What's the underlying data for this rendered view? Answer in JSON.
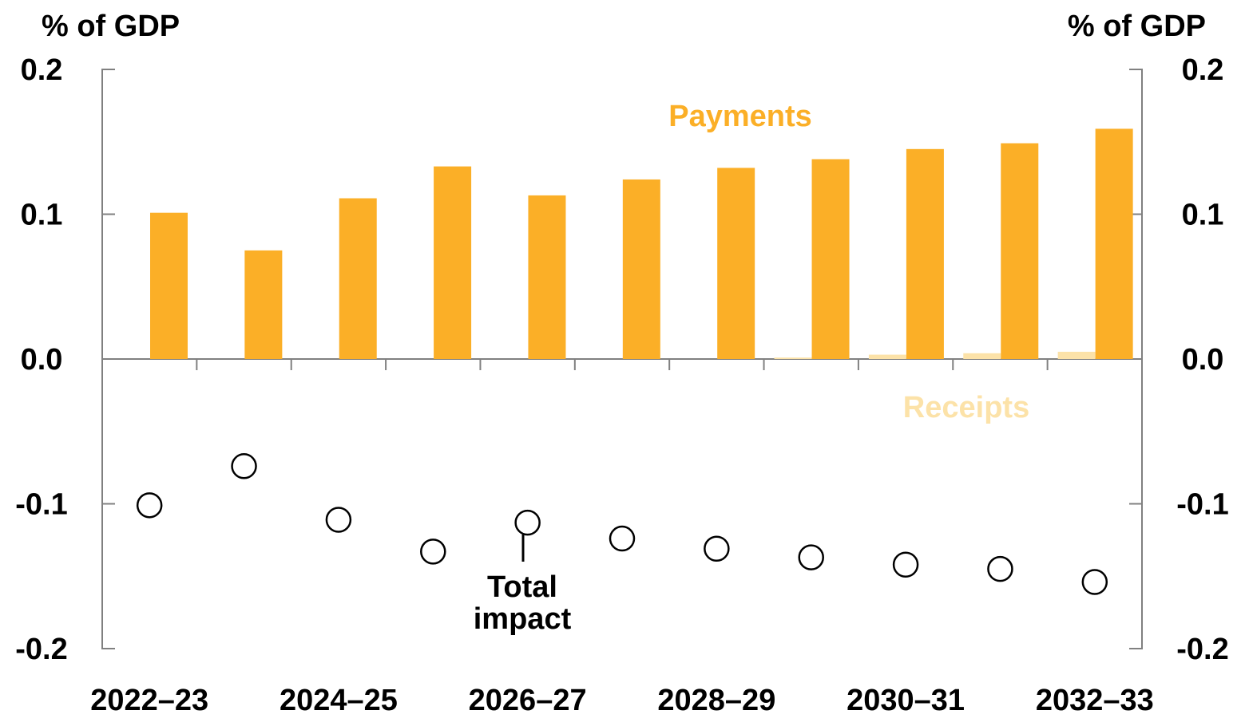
{
  "chart_data": {
    "type": "bar",
    "title": "",
    "y_unit_left": "% of GDP",
    "y_unit_right": "% of GDP",
    "ylim": [
      -0.2,
      0.2
    ],
    "yticks": [
      "0.2",
      "0.1",
      "0.0",
      "-0.1",
      "-0.2"
    ],
    "ytick_values": [
      0.2,
      0.1,
      0.0,
      -0.1,
      -0.2
    ],
    "categories": [
      "2022–23",
      "2023–24",
      "2024–25",
      "2025–26",
      "2026–27",
      "2027–28",
      "2028–29",
      "2029–30",
      "2030–31",
      "2031–32",
      "2032–33"
    ],
    "xtick_labels": [
      "2022–23",
      "",
      "2024–25",
      "",
      "2026–27",
      "",
      "2028–29",
      "",
      "2030–31",
      "",
      "2032–33"
    ],
    "series": [
      {
        "name": "Receipts",
        "type": "bar",
        "color": "#FCE2A8",
        "values": [
          0.0,
          0.0,
          0.0,
          0.0,
          0.0,
          0.0,
          0.0,
          0.001,
          0.003,
          0.004,
          0.005
        ]
      },
      {
        "name": "Payments",
        "type": "bar",
        "color": "#FBAF27",
        "values": [
          0.101,
          0.075,
          0.111,
          0.133,
          0.113,
          0.124,
          0.132,
          0.138,
          0.145,
          0.149,
          0.159
        ]
      },
      {
        "name": "Total impact",
        "type": "scatter",
        "color": "#000000",
        "values": [
          -0.101,
          -0.074,
          -0.111,
          -0.133,
          -0.113,
          -0.124,
          -0.131,
          -0.137,
          -0.142,
          -0.145,
          -0.154
        ]
      }
    ],
    "annotations": {
      "payments": "Payments",
      "receipts": "Receipts",
      "total_line1": "Total",
      "total_line2": "impact"
    },
    "grid": false,
    "legend": "none"
  }
}
